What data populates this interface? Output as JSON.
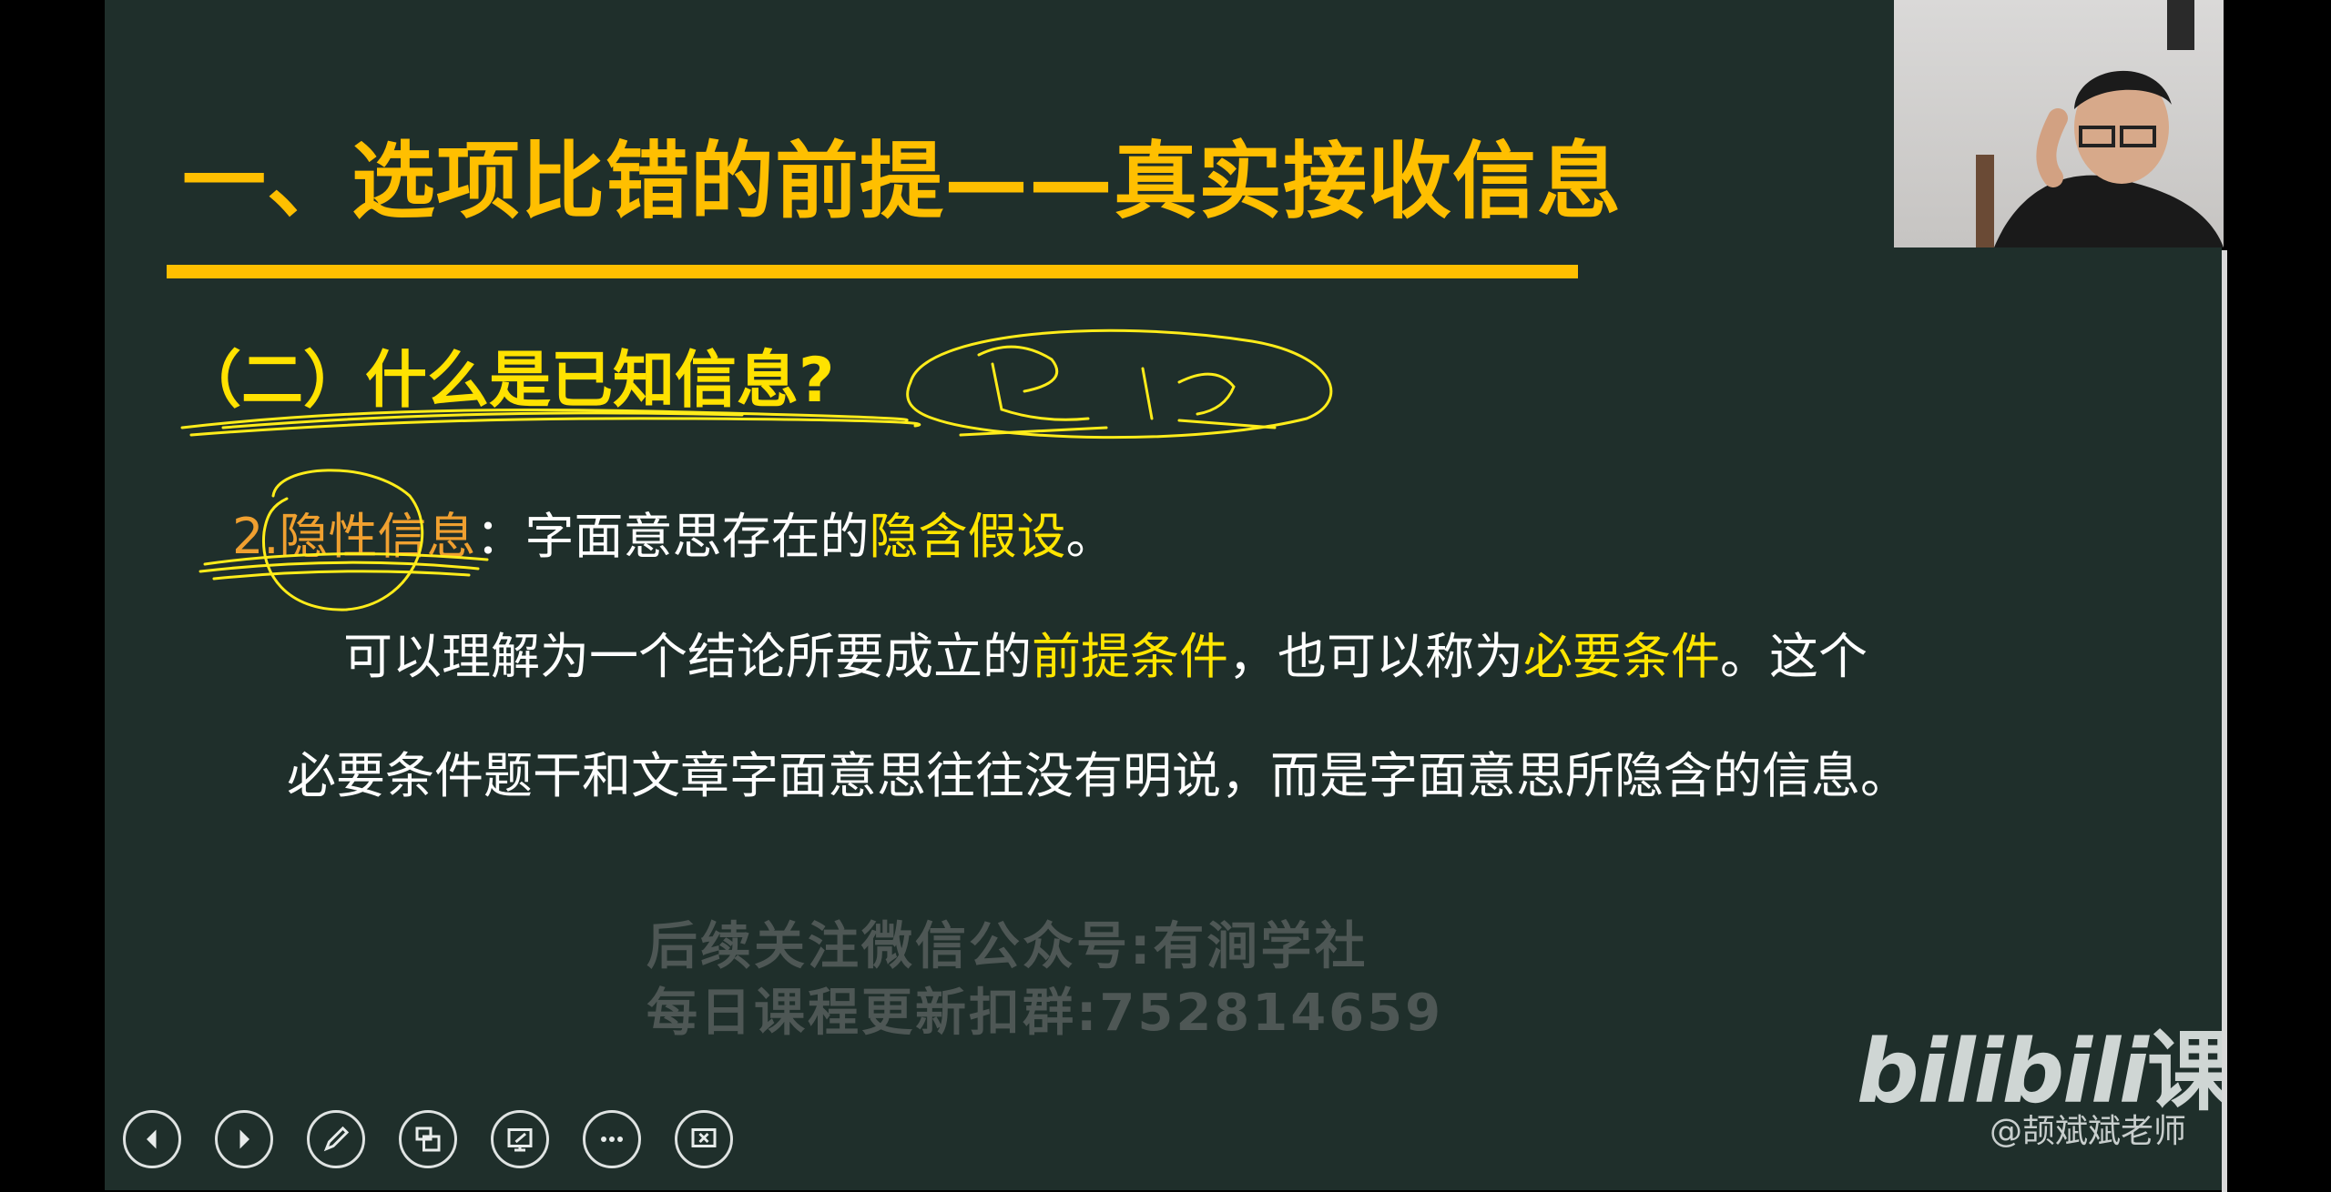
{
  "slide": {
    "title": "一、选项比错的前提——真实接收信息",
    "subtitle": "（二）什么是已知信息?",
    "line1": {
      "number": "2.",
      "term": "隐性信息",
      "colon": "：",
      "text_a": "字面意思存在的",
      "highlight": "隐含假设",
      "text_b": "。"
    },
    "line2": {
      "text_a": "可以理解为一个结论所要成立的",
      "highlight_a": "前提条件",
      "text_b": "，也可以称为",
      "highlight_b": "必要条件",
      "text_c": "。这个"
    },
    "line3": {
      "text": "必要条件题干和文章字面意思往往没有明说，而是字面意思所隐含的信息。"
    }
  },
  "watermark": {
    "line1": "后续关注微信公众号:有涧学社",
    "line2": "每日课程更新扣群:752814659"
  },
  "branding": {
    "logo_text": "bilibili",
    "logo_suffix": "课堂",
    "user": "@颉斌斌老师"
  },
  "toolbar": {
    "icons": [
      "prev-icon",
      "next-icon",
      "pen-icon",
      "slides-icon",
      "screen-icon",
      "more-icon",
      "exit-icon"
    ]
  },
  "colors": {
    "slide_bg": "#1f2f2b",
    "accent": "#ffbf00",
    "highlight": "#ffe500",
    "term": "#f0a030"
  }
}
